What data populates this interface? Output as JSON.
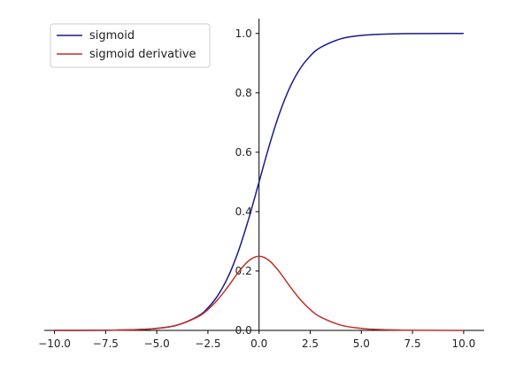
{
  "chart_data": {
    "type": "line",
    "title": "",
    "xlabel": "",
    "ylabel": "",
    "xlim": [
      -10.5,
      11.0
    ],
    "ylim": [
      0,
      1.05
    ],
    "x_ticks": [
      "−10.0",
      "−7.5",
      "−5.0",
      "−2.5",
      "0.0",
      "2.5",
      "5.0",
      "7.5",
      "10.0"
    ],
    "y_ticks": [
      "0.0",
      "0.2",
      "0.4",
      "0.6",
      "0.8",
      "1.0"
    ],
    "x_tick_values": [
      -10,
      -7.5,
      -5,
      -2.5,
      0,
      2.5,
      5,
      7.5,
      10
    ],
    "y_tick_values": [
      0,
      0.2,
      0.4,
      0.6,
      0.8,
      1.0
    ],
    "x": [
      -10,
      -9,
      -8,
      -7,
      -6,
      -5,
      -4,
      -3,
      -2.5,
      -2,
      -1.5,
      -1,
      -0.5,
      0,
      0.5,
      1,
      1.5,
      2,
      2.5,
      3,
      4,
      5,
      6,
      7,
      8,
      9,
      10
    ],
    "series": [
      {
        "name": "sigmoid",
        "color": "#1a1a8c",
        "values": [
          4.54e-05,
          0.000123,
          0.000335,
          0.000911,
          0.00247,
          0.00669,
          0.018,
          0.0474,
          0.0759,
          0.1192,
          0.1824,
          0.2689,
          0.3775,
          0.5,
          0.6225,
          0.7311,
          0.8176,
          0.8808,
          0.9241,
          0.9526,
          0.982,
          0.9933,
          0.9975,
          0.9991,
          0.9997,
          0.9999,
          1.0
        ]
      },
      {
        "name": "sigmoid derivative",
        "color": "#c0302a",
        "values": [
          4.54e-05,
          0.000123,
          0.000335,
          0.00091,
          0.00247,
          0.00665,
          0.0177,
          0.0452,
          0.0701,
          0.105,
          0.1491,
          0.1966,
          0.235,
          0.25,
          0.235,
          0.1966,
          0.1491,
          0.105,
          0.0701,
          0.0452,
          0.0177,
          0.00665,
          0.00247,
          0.00091,
          0.000335,
          0.000123,
          4.54e-05
        ]
      }
    ],
    "legend": {
      "position": "top-left",
      "entries": [
        "sigmoid",
        "sigmoid derivative"
      ]
    },
    "grid": false
  }
}
